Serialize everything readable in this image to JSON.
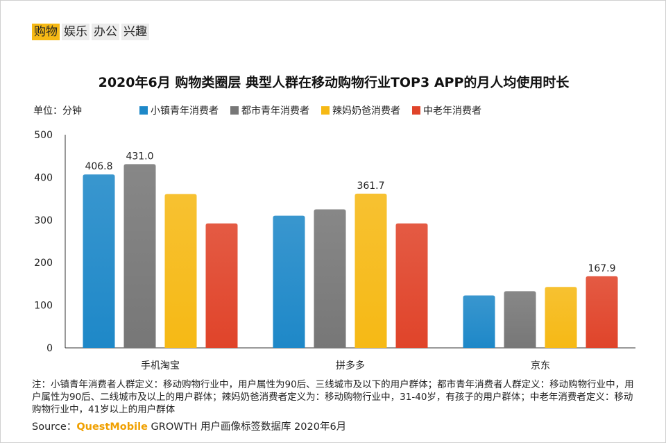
{
  "tabs": [
    {
      "label": "购物",
      "active": true
    },
    {
      "label": "娱乐",
      "active": false
    },
    {
      "label": "办公",
      "active": false
    },
    {
      "label": "兴趣",
      "active": false
    }
  ],
  "unit_label": "单位：分钟",
  "notes": "注：小镇青年消费者人群定义：移动购物行业中，用户属性为90后、三线城市及以下的用户群体；都市青年消费者人群定义：移动购物行业中，用户属性为90后、二线城市及以上的用户群体；辣妈奶爸消费者定义为：移动购物行业中，31-40岁，有孩子的用户群体；中老年消费者定义：移动购物行业中，41岁以上的用户群体",
  "source": {
    "prefix": "Source：",
    "brand": "QuestMobile",
    "suffix": " GROWTH 用户画像标签数据库 2020年6月"
  },
  "chart_data": {
    "type": "bar",
    "title": "2020年6月 购物类圈层 典型人群在移动购物行业TOP3 APP的月人均使用时长",
    "ylabel": "单位：分钟",
    "ylim": [
      0,
      500
    ],
    "yticks": [
      0,
      100,
      200,
      300,
      400,
      500
    ],
    "categories": [
      "手机淘宝",
      "拼多多",
      "京东"
    ],
    "legend_position": "top",
    "grid": false,
    "series": [
      {
        "name": "小镇青年消费者",
        "color": "#1e88c8",
        "values": [
          406.8,
          310,
          123
        ],
        "labels": [
          "406.8",
          "",
          ""
        ]
      },
      {
        "name": "都市青年消费者",
        "color": "#777777",
        "values": [
          431.0,
          325,
          133
        ],
        "labels": [
          "431.0",
          "",
          ""
        ]
      },
      {
        "name": "辣妈奶爸消费者",
        "color": "#f6b915",
        "values": [
          361,
          361.7,
          143
        ],
        "labels": [
          "",
          "361.7",
          ""
        ]
      },
      {
        "name": "中老年消费者",
        "color": "#e0442a",
        "values": [
          292,
          292,
          167.9
        ],
        "labels": [
          "",
          "",
          "167.9"
        ]
      }
    ]
  }
}
